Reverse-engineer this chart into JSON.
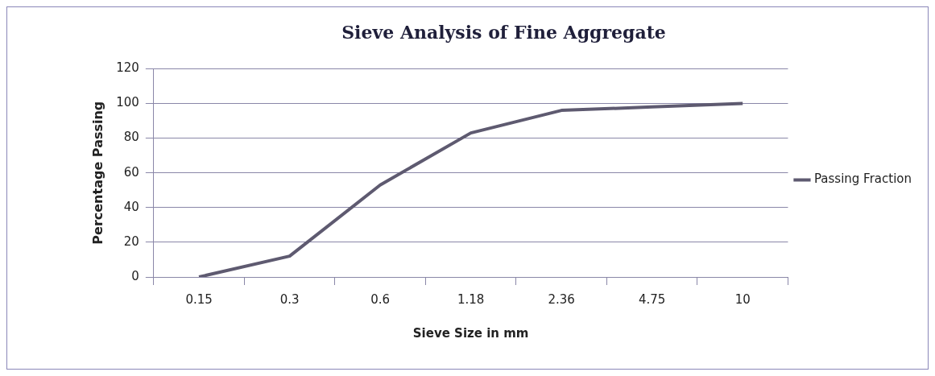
{
  "chart_data": {
    "type": "line",
    "title": "Sieve Analysis of Fine Aggregate",
    "xlabel": "Sieve Size in mm",
    "ylabel": "Percentage Passing",
    "categories": [
      "0.15",
      "0.3",
      "0.6",
      "1.18",
      "2.36",
      "4.75",
      "10"
    ],
    "series": [
      {
        "name": "Passing Fraction",
        "color": "#5e5a70",
        "values": [
          0,
          12,
          53,
          83,
          96,
          98,
          100
        ]
      }
    ],
    "ylim": [
      0,
      120
    ],
    "yticks": [
      0,
      20,
      40,
      60,
      80,
      100,
      120
    ],
    "grid": "y",
    "legend": "right",
    "marker": "none",
    "line_style": "solid"
  }
}
